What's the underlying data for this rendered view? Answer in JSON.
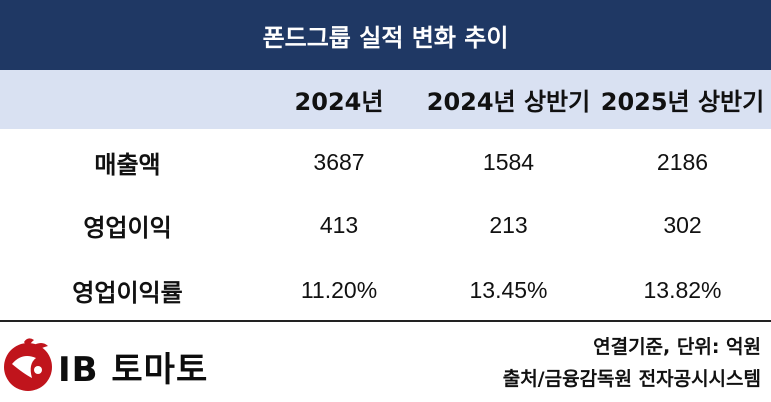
{
  "title": "폰드그룹 실적 변화 추이",
  "columns": [
    "",
    "2024년",
    "2024년 상반기",
    "2025년 상반기"
  ],
  "rows": [
    {
      "label": "매출액",
      "values": [
        "3687",
        "1584",
        "2186"
      ]
    },
    {
      "label": "영업이익",
      "values": [
        "413",
        "213",
        "302"
      ]
    },
    {
      "label": "영업이익률",
      "values": [
        "11.20%",
        "13.45%",
        "13.82%"
      ]
    }
  ],
  "footer": {
    "logo_text": "IB 토마토",
    "note_unit": "연결기준, 단위: 억원",
    "note_source": "출처/금융감독원 전자공시시스템"
  },
  "colors": {
    "title_bg": "#1f3864",
    "header_bg": "#d9e1f2",
    "logo_red": "#c0141c"
  }
}
